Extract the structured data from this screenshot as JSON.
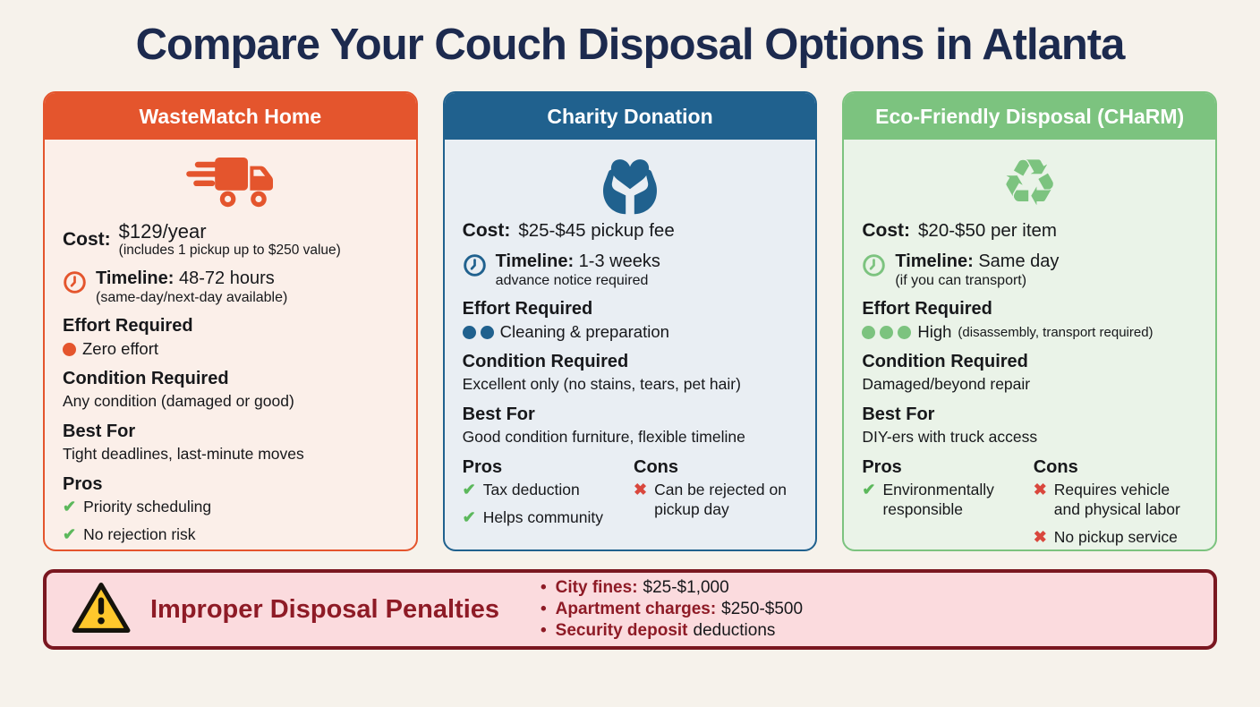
{
  "page": {
    "title": "Compare Your Couch Disposal Options in Atlanta"
  },
  "colors": {
    "page_bg": "#F6F2EB",
    "title_color": "#1C2A4E",
    "text": "#17181B",
    "check": "#5CB85C",
    "cross": "#D9473D",
    "banner_bg": "#FBDBDE",
    "banner_border": "#7A1720",
    "banner_accent": "#8E1B26"
  },
  "icons": {
    "check": "✔",
    "cross": "✖",
    "recycle": "♻",
    "bullet": "•"
  },
  "cards": [
    {
      "title": "WasteMatch Home",
      "icon": "truck-icon",
      "theme_color": "#E4552D",
      "body_bg": "#FBEFE9",
      "cost_label": "Cost:",
      "cost_value": "$129/year",
      "cost_note": "(includes 1 pickup up to $250 value)",
      "timeline_label": "Timeline:",
      "timeline_value": "48-72 hours",
      "timeline_note": "(same-day/next-day available)",
      "effort_label": "Effort Required",
      "effort_dots": 1,
      "effort_text": "Zero effort",
      "condition_label": "Condition Required",
      "condition_text": "Any condition (damaged or good)",
      "bestfor_label": "Best For",
      "bestfor_text": "Tight deadlines, last-minute moves",
      "pros_label": "Pros",
      "pros": [
        "Priority scheduling",
        "No rejection risk"
      ]
    },
    {
      "title": "Charity Donation",
      "icon": "heart-hands-icon",
      "theme_color": "#20618E",
      "body_bg": "#E9EEF3",
      "cost_label": "Cost:",
      "cost_value": "$25-$45 pickup fee",
      "timeline_label": "Timeline:",
      "timeline_value": "1-3 weeks",
      "timeline_note": "advance notice required",
      "effort_label": "Effort Required",
      "effort_dots": 2,
      "effort_text": "Cleaning & preparation",
      "condition_label": "Condition Required",
      "condition_text": "Excellent only (no stains, tears, pet hair)",
      "bestfor_label": "Best For",
      "bestfor_text": "Good condition furniture, flexible timeline",
      "pros_label": "Pros",
      "pros": [
        "Tax deduction",
        "Helps community"
      ],
      "cons_label": "Cons",
      "cons": [
        "Can be rejected on pickup day"
      ]
    },
    {
      "title": "Eco-Friendly Disposal (CHaRM)",
      "icon": "recycle-icon",
      "theme_color": "#7CC37F",
      "body_bg": "#EAF3E8",
      "cost_label": "Cost:",
      "cost_value": "$20-$50 per item",
      "timeline_label": "Timeline:",
      "timeline_value": "Same day",
      "timeline_note": "(if you can transport)",
      "effort_label": "Effort Required",
      "effort_dots": 3,
      "effort_text": "High",
      "effort_note": "(disassembly, transport required)",
      "condition_label": "Condition Required",
      "condition_text": "Damaged/beyond repair",
      "bestfor_label": "Best For",
      "bestfor_text": "DIY-ers with truck access",
      "pros_label": "Pros",
      "pros": [
        "Environmentally responsible"
      ],
      "cons_label": "Cons",
      "cons": [
        "Requires vehicle and physical labor",
        "No pickup service"
      ]
    }
  ],
  "warning": {
    "title": "Improper Disposal Penalties",
    "items": [
      {
        "bold": "City fines:",
        "rest": "$25-$1,000"
      },
      {
        "bold": "Apartment charges:",
        "rest": "$250-$500"
      },
      {
        "bold": "Security deposit",
        "rest": "deductions"
      }
    ]
  }
}
